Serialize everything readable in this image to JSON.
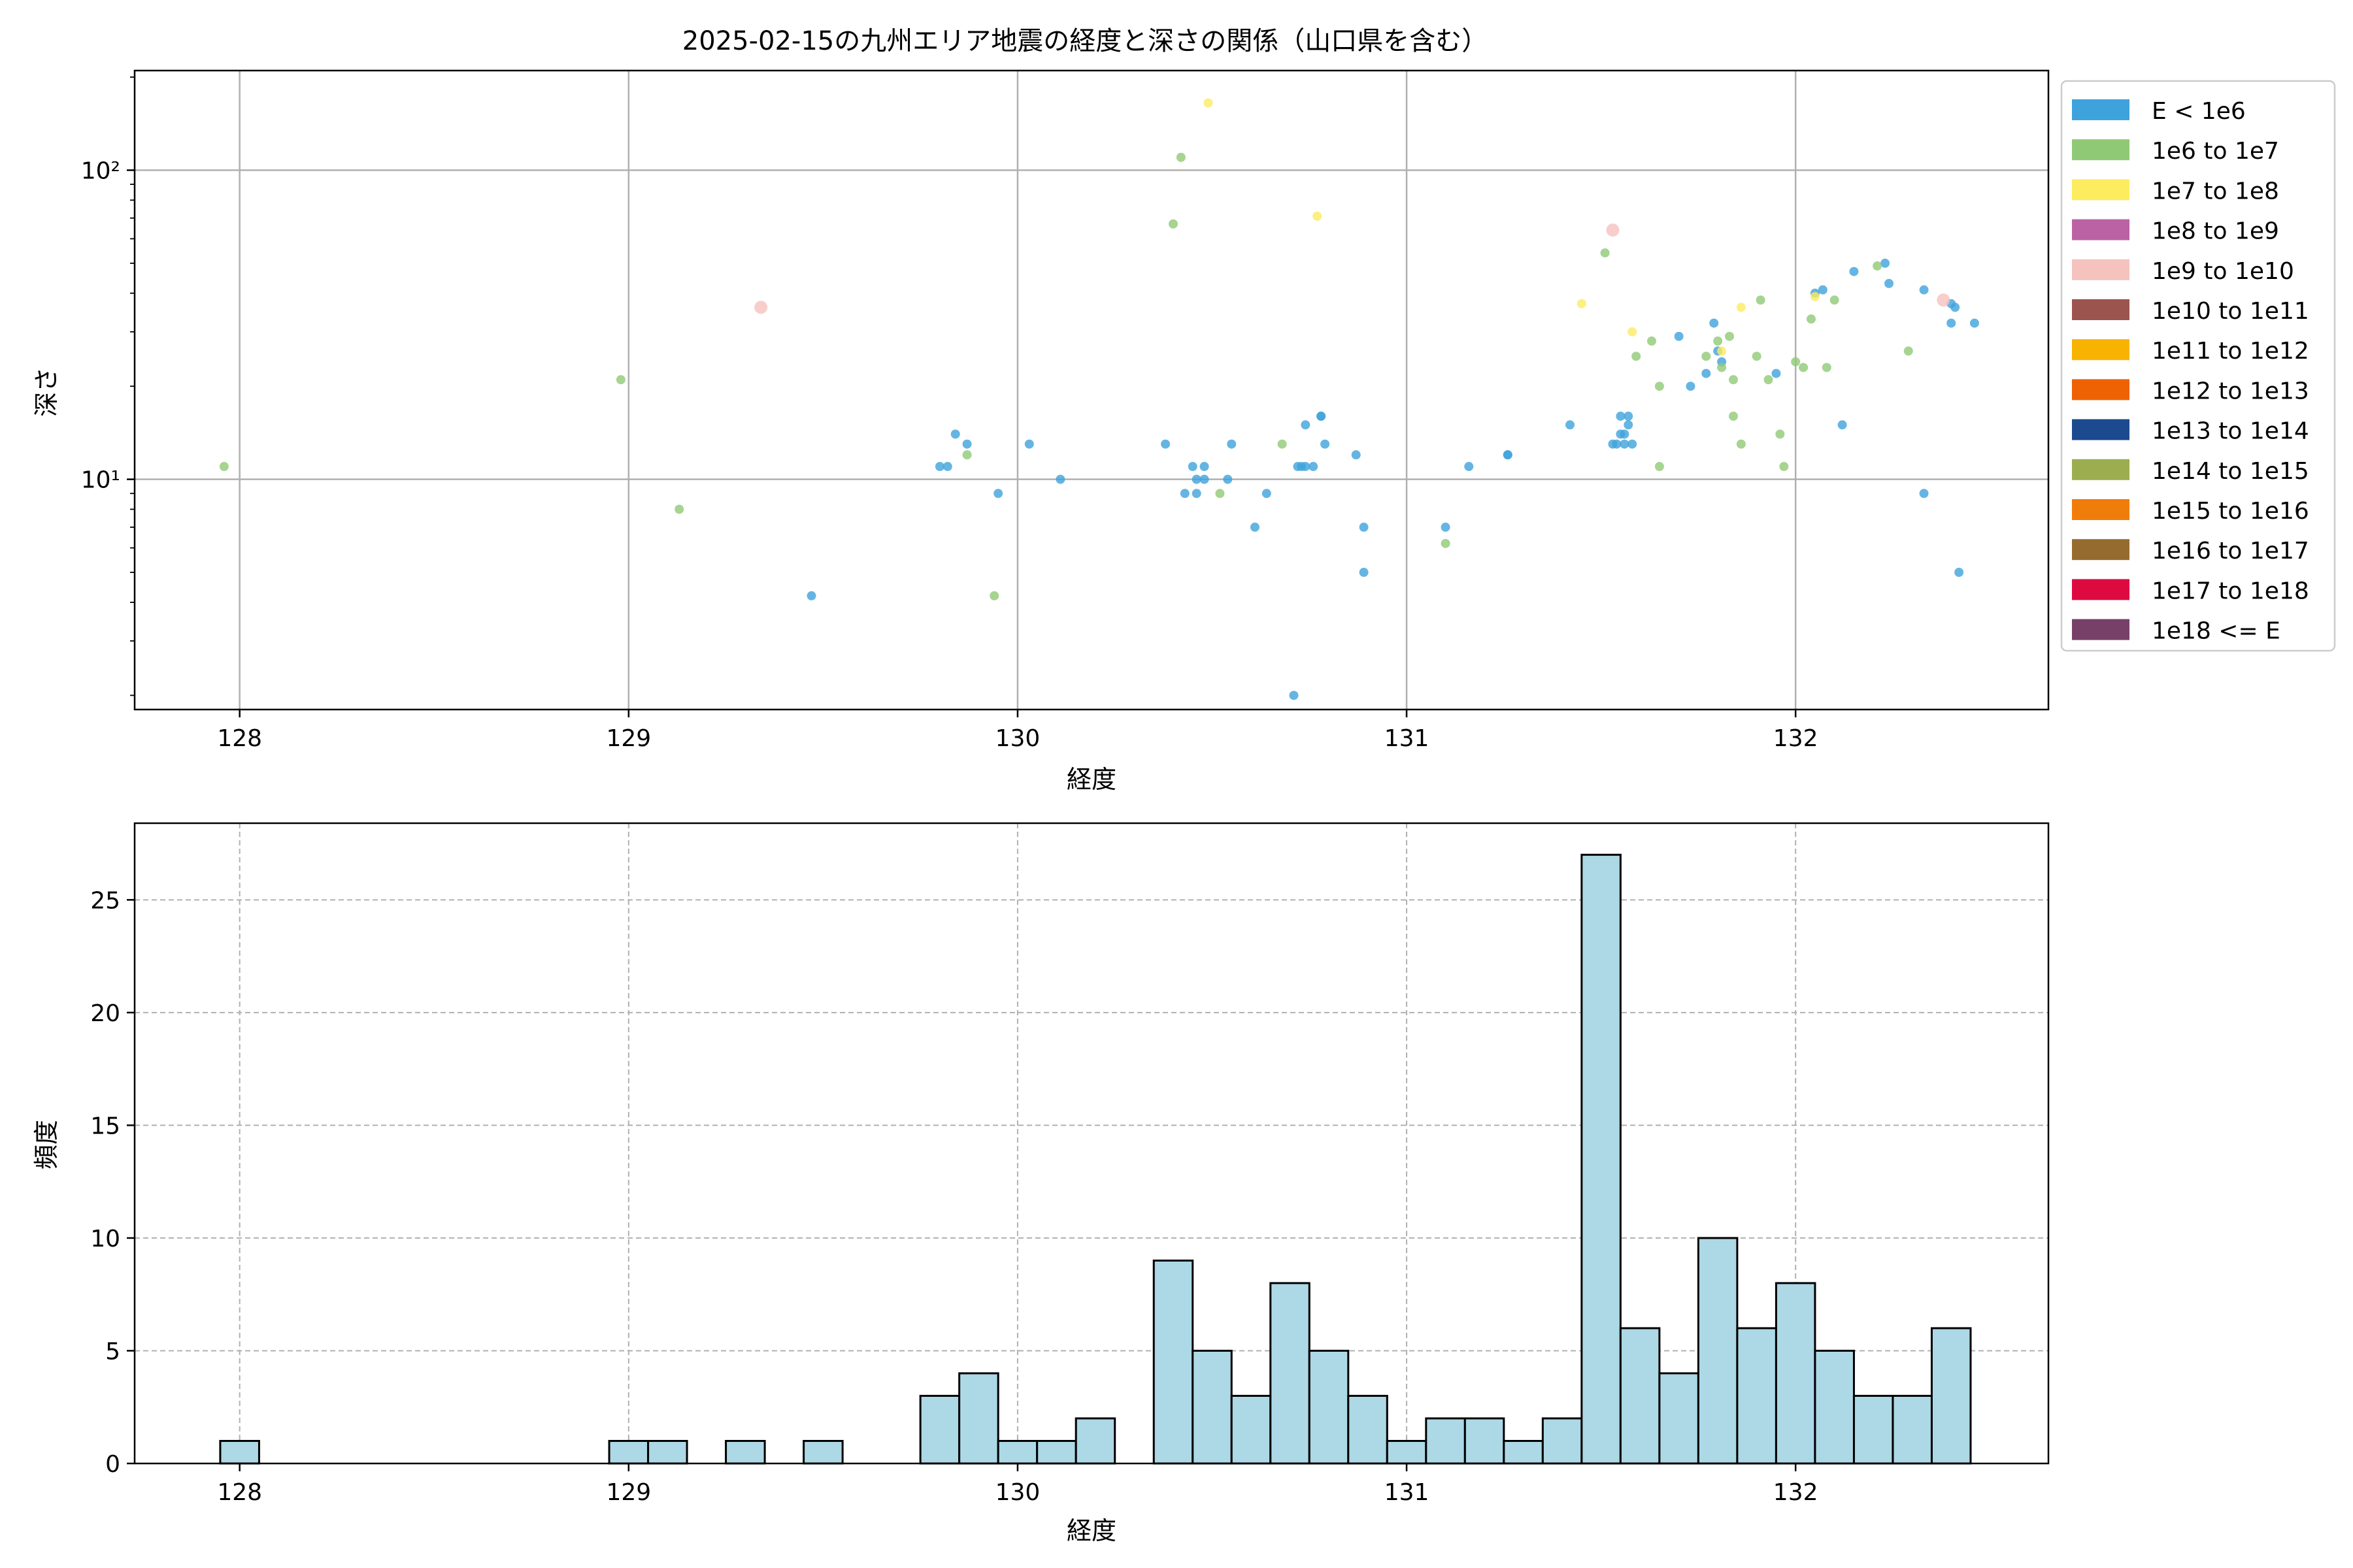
{
  "chart_data": [
    {
      "type": "scatter",
      "title": "2025-02-15の九州エリア地震の経度と深さの関係（山口県を含む）",
      "xlabel": "経度",
      "ylabel": "深さ",
      "xlim": [
        127.73,
        132.65
      ],
      "ylim": [
        210,
        1.8
      ],
      "y_scale": "log",
      "y_inverted": true,
      "grid": true,
      "x_ticks": [
        128,
        129,
        130,
        131,
        132
      ],
      "x_tick_labels": [
        "128",
        "129",
        "130",
        "131",
        "132"
      ],
      "y_ticks": [
        10,
        100
      ],
      "y_tick_labels": [
        "10¹",
        "10²"
      ],
      "legend_position": "outside-right",
      "legend": [
        {
          "label": "E < 1e6",
          "color": "#3ea2dc"
        },
        {
          "label": "1e6 to 1e7",
          "color": "#90c975"
        },
        {
          "label": "1e7 to 1e8",
          "color": "#fdeb60"
        },
        {
          "label": "1e8 to 1e9",
          "color": "#bb62a5"
        },
        {
          "label": "1e9 to 1e10",
          "color": "#f5c2be"
        },
        {
          "label": "1e10 to 1e11",
          "color": "#9b554e"
        },
        {
          "label": "1e11 to 1e12",
          "color": "#f8b300"
        },
        {
          "label": "1e12 to 1e13",
          "color": "#ee6203"
        },
        {
          "label": "1e13 to 1e14",
          "color": "#1c4a8f"
        },
        {
          "label": "1e14 to 1e15",
          "color": "#9bad4f"
        },
        {
          "label": "1e15 to 1e16",
          "color": "#f07d0a"
        },
        {
          "label": "1e16 to 1e17",
          "color": "#966b2f"
        },
        {
          "label": "1e17 to 1e18",
          "color": "#dd0a40"
        },
        {
          "label": "1e18 <= E",
          "color": "#774068"
        }
      ],
      "series": [
        {
          "label": "E < 1e6",
          "color": "#3ea2dc",
          "points": [
            [
              129.47,
              4.2
            ],
            [
              129.8,
              11
            ],
            [
              129.82,
              11
            ],
            [
              129.84,
              14
            ],
            [
              129.87,
              13
            ],
            [
              129.95,
              9
            ],
            [
              130.03,
              13
            ],
            [
              130.11,
              10
            ],
            [
              130.38,
              13
            ],
            [
              130.43,
              9
            ],
            [
              130.45,
              11
            ],
            [
              130.46,
              9
            ],
            [
              130.46,
              10
            ],
            [
              130.48,
              10
            ],
            [
              130.48,
              11
            ],
            [
              130.54,
              10
            ],
            [
              130.55,
              13
            ],
            [
              130.61,
              7
            ],
            [
              130.64,
              9
            ],
            [
              130.71,
              2.0
            ],
            [
              130.72,
              11
            ],
            [
              130.73,
              11
            ],
            [
              130.74,
              11
            ],
            [
              130.74,
              15
            ],
            [
              130.76,
              11
            ],
            [
              130.78,
              16
            ],
            [
              130.78,
              16
            ],
            [
              130.79,
              13
            ],
            [
              130.87,
              12
            ],
            [
              130.89,
              5.0
            ],
            [
              130.89,
              7
            ],
            [
              131.1,
              7
            ],
            [
              131.16,
              11
            ],
            [
              131.26,
              12
            ],
            [
              131.26,
              12
            ],
            [
              131.42,
              15
            ],
            [
              131.53,
              13
            ],
            [
              131.54,
              13
            ],
            [
              131.55,
              14
            ],
            [
              131.55,
              16
            ],
            [
              131.56,
              14
            ],
            [
              131.56,
              13
            ],
            [
              131.57,
              16
            ],
            [
              131.57,
              15
            ],
            [
              131.58,
              13
            ],
            [
              131.7,
              29
            ],
            [
              131.73,
              20
            ],
            [
              131.77,
              22
            ],
            [
              131.79,
              32
            ],
            [
              131.8,
              26
            ],
            [
              131.81,
              24
            ],
            [
              131.95,
              22
            ],
            [
              132.05,
              40
            ],
            [
              132.07,
              41
            ],
            [
              132.12,
              15
            ],
            [
              132.15,
              47
            ],
            [
              132.23,
              50
            ],
            [
              132.24,
              43
            ],
            [
              132.33,
              9
            ],
            [
              132.33,
              41
            ],
            [
              132.4,
              32
            ],
            [
              132.4,
              37
            ],
            [
              132.41,
              36
            ],
            [
              132.42,
              5.0
            ],
            [
              132.46,
              32
            ]
          ]
        },
        {
          "label": "1e6 to 1e7",
          "color": "#90c975",
          "points": [
            [
              127.96,
              11
            ],
            [
              128.98,
              21
            ],
            [
              129.13,
              8
            ],
            [
              129.87,
              12
            ],
            [
              129.94,
              4.2
            ],
            [
              130.4,
              67
            ],
            [
              130.42,
              110
            ],
            [
              130.52,
              9
            ],
            [
              130.68,
              13
            ],
            [
              131.1,
              6.2
            ],
            [
              131.51,
              54
            ],
            [
              131.59,
              25
            ],
            [
              131.63,
              28
            ],
            [
              131.65,
              11
            ],
            [
              131.65,
              20
            ],
            [
              131.77,
              25
            ],
            [
              131.8,
              28
            ],
            [
              131.81,
              23
            ],
            [
              131.83,
              29
            ],
            [
              131.84,
              21
            ],
            [
              131.84,
              16
            ],
            [
              131.86,
              13
            ],
            [
              131.9,
              25
            ],
            [
              131.91,
              38
            ],
            [
              131.93,
              21
            ],
            [
              131.96,
              14
            ],
            [
              131.97,
              11
            ],
            [
              132.0,
              24
            ],
            [
              132.02,
              23
            ],
            [
              132.04,
              33
            ],
            [
              132.08,
              23
            ],
            [
              132.1,
              38
            ],
            [
              132.21,
              49
            ],
            [
              132.29,
              26
            ]
          ]
        },
        {
          "label": "1e7 to 1e8",
          "color": "#fdeb60",
          "points": [
            [
              130.49,
              165
            ],
            [
              130.77,
              71
            ],
            [
              131.45,
              37
            ],
            [
              131.58,
              30
            ],
            [
              131.81,
              26
            ],
            [
              131.86,
              36
            ],
            [
              132.05,
              39
            ]
          ]
        },
        {
          "label": "1e9 to 1e10",
          "color": "#f5c2be",
          "points": [
            [
              129.34,
              36
            ],
            [
              131.53,
              64
            ],
            [
              132.38,
              38
            ]
          ]
        }
      ]
    },
    {
      "type": "bar",
      "title": "",
      "xlabel": "経度",
      "ylabel": "頻度",
      "xlim": [
        127.73,
        132.65
      ],
      "ylim": [
        0,
        28.4
      ],
      "grid": true,
      "x_ticks": [
        128,
        129,
        130,
        131,
        132
      ],
      "x_tick_labels": [
        "128",
        "129",
        "130",
        "131",
        "132"
      ],
      "y_ticks": [
        0,
        5,
        10,
        15,
        20,
        25
      ],
      "y_tick_labels": [
        "0",
        "5",
        "10",
        "15",
        "20",
        "25"
      ],
      "bar_color": "#add8e6",
      "bin_start": 127.95,
      "bin_width": 0.1,
      "values": [
        1,
        0,
        0,
        0,
        0,
        0,
        0,
        0,
        0,
        0,
        1,
        1,
        0,
        1,
        0,
        1,
        0,
        0,
        3,
        4,
        1,
        1,
        2,
        0,
        9,
        5,
        3,
        8,
        5,
        3,
        1,
        2,
        2,
        1,
        2,
        27,
        6,
        4,
        10,
        6,
        8,
        5,
        3,
        3,
        6
      ]
    }
  ]
}
